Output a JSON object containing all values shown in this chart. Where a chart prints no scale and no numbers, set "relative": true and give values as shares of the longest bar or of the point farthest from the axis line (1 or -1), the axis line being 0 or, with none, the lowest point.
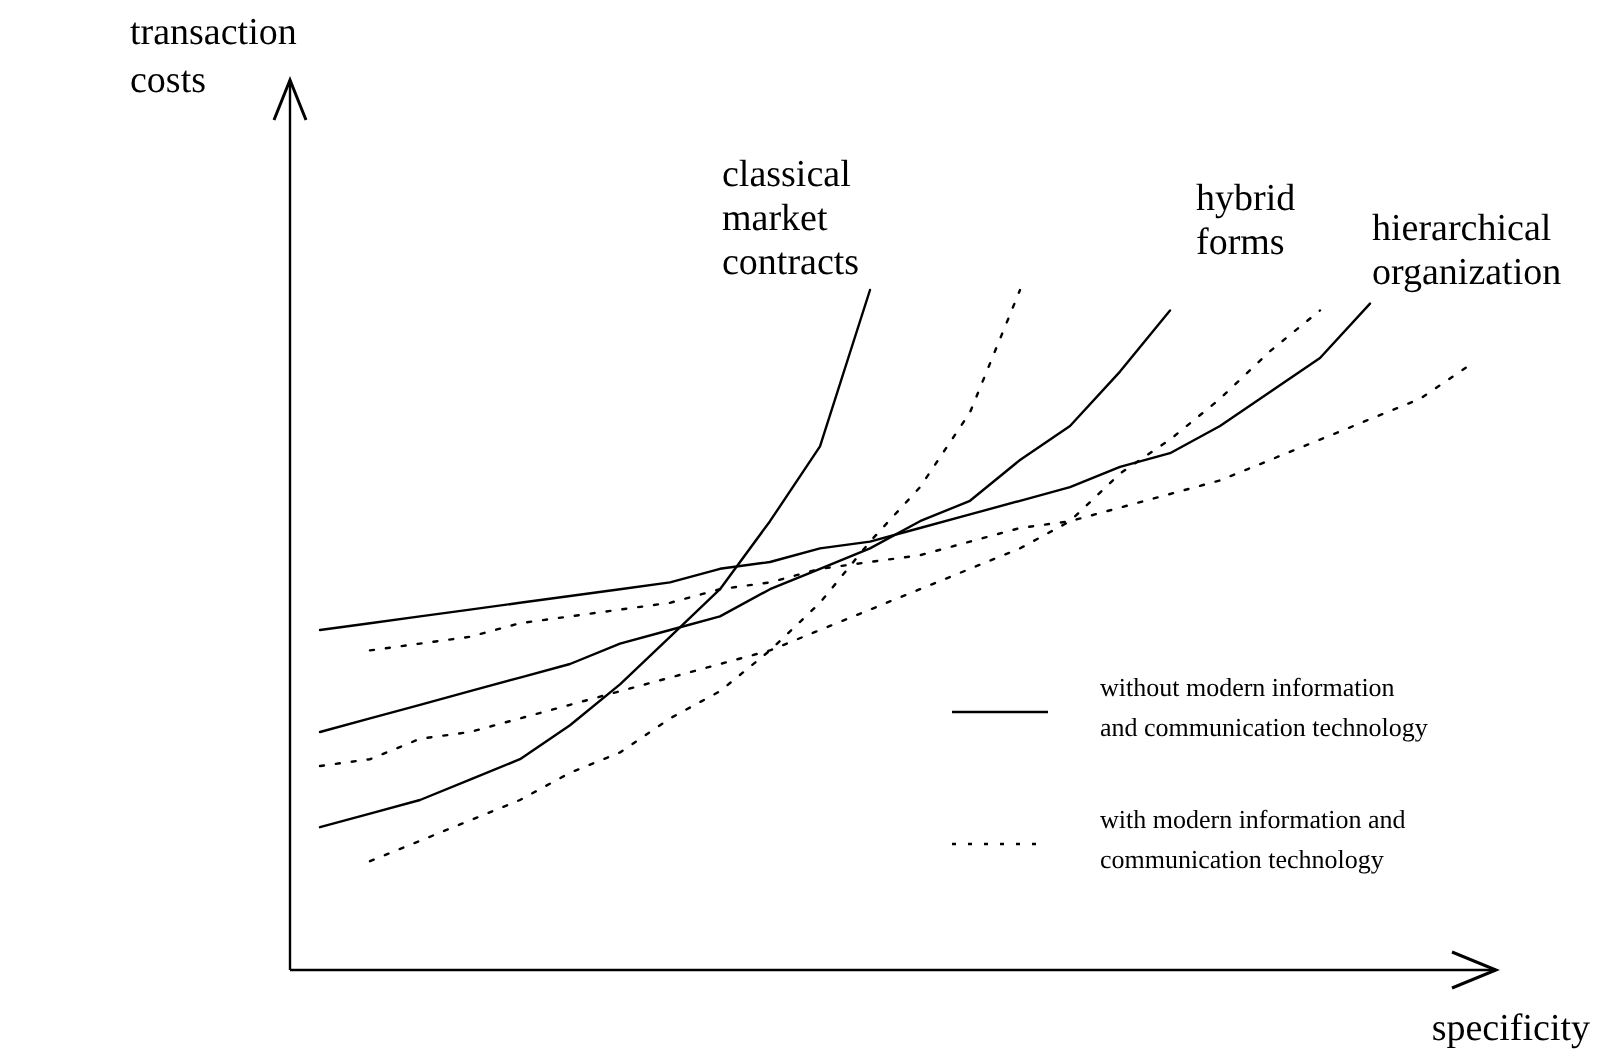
{
  "chart_data": {
    "type": "line",
    "relative": true,
    "xlabel": "specificity",
    "ylabel": "transaction costs",
    "categories": [
      null,
      null,
      null,
      null,
      null,
      null,
      null,
      null,
      null,
      null,
      null,
      null,
      null,
      null,
      null,
      null,
      null,
      null,
      null,
      null,
      null,
      null,
      null,
      null
    ],
    "series": [
      {
        "name": "classical market contracts",
        "color": "#000000",
        "line_style": "solid",
        "values": [
          0.21,
          0.23,
          0.25,
          0.28,
          0.31,
          0.36,
          0.42,
          0.49,
          0.56,
          0.66,
          0.77,
          1,
          null,
          null,
          null,
          null,
          null,
          null,
          null,
          null,
          null,
          null,
          null,
          null
        ]
      },
      {
        "name": "hybrid forms",
        "color": "#000000",
        "line_style": "solid",
        "values": [
          0.35,
          0.37,
          0.39,
          0.41,
          0.43,
          0.45,
          0.48,
          0.5,
          0.52,
          0.56,
          0.59,
          0.62,
          0.66,
          0.69,
          0.75,
          0.8,
          0.88,
          0.97,
          null,
          null,
          null,
          null,
          null,
          null
        ]
      },
      {
        "name": "hierarchical organization",
        "color": "#000000",
        "line_style": "solid",
        "values": [
          0.5,
          0.51,
          0.52,
          0.53,
          0.54,
          0.55,
          0.56,
          0.57,
          0.59,
          0.6,
          0.62,
          0.63,
          0.65,
          0.67,
          0.69,
          0.71,
          0.74,
          0.76,
          0.8,
          0.85,
          0.9,
          0.98,
          null,
          null
        ]
      },
      {
        "color": "#000000",
        "line_style": "dotted",
        "values": [
          null,
          0.16,
          0.19,
          0.22,
          0.25,
          0.29,
          0.32,
          0.37,
          0.41,
          0.47,
          0.54,
          0.63,
          0.71,
          0.82,
          1,
          null,
          null,
          null,
          null,
          null,
          null,
          null,
          null,
          null
        ]
      },
      {
        "color": "#000000",
        "line_style": "dotted",
        "values": [
          0.3,
          0.31,
          0.34,
          0.35,
          0.37,
          0.39,
          0.41,
          0.43,
          0.45,
          0.47,
          0.5,
          0.53,
          0.56,
          0.59,
          0.62,
          0.66,
          0.73,
          0.78,
          0.84,
          0.91,
          0.97,
          null,
          null,
          null
        ]
      },
      {
        "color": "#000000",
        "line_style": "dotted",
        "values": [
          null,
          0.47,
          0.48,
          0.49,
          0.51,
          0.52,
          0.53,
          0.54,
          0.56,
          0.57,
          0.59,
          0.6,
          0.61,
          0.63,
          0.65,
          0.66,
          0.68,
          0.7,
          0.72,
          0.75,
          0.78,
          0.81,
          0.84,
          0.89
        ]
      }
    ],
    "annotations": [
      "without modern information and communication technology",
      "with modern information and communication technology"
    ]
  }
}
